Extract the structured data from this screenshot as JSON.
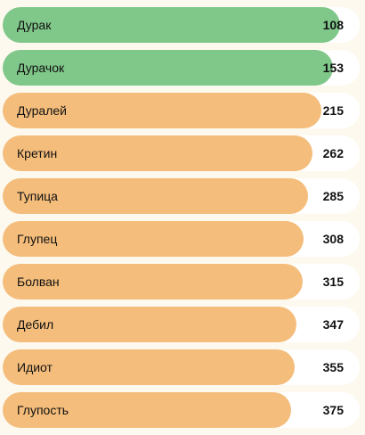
{
  "items": [
    {
      "label": "Дурак",
      "value": "108",
      "fill": 0.945,
      "color": "green"
    },
    {
      "label": "Дурачок",
      "value": "153",
      "fill": 0.925,
      "color": "green"
    },
    {
      "label": "Дуралей",
      "value": "215",
      "fill": 0.893,
      "color": "orange"
    },
    {
      "label": "Кретин",
      "value": "262",
      "fill": 0.868,
      "color": "orange"
    },
    {
      "label": "Тупица",
      "value": "285",
      "fill": 0.855,
      "color": "orange"
    },
    {
      "label": "Глупец",
      "value": "308",
      "fill": 0.843,
      "color": "orange"
    },
    {
      "label": "Болван",
      "value": "315",
      "fill": 0.84,
      "color": "orange"
    },
    {
      "label": "Дебил",
      "value": "347",
      "fill": 0.823,
      "color": "orange"
    },
    {
      "label": "Идиот",
      "value": "355",
      "fill": 0.818,
      "color": "orange"
    },
    {
      "label": "Глупость",
      "value": "375",
      "fill": 0.808,
      "color": "orange"
    }
  ],
  "colors": {
    "green": "#80c78a",
    "orange": "#f4bd7b",
    "track": "#ffffff",
    "background": "#fdf9ef"
  }
}
